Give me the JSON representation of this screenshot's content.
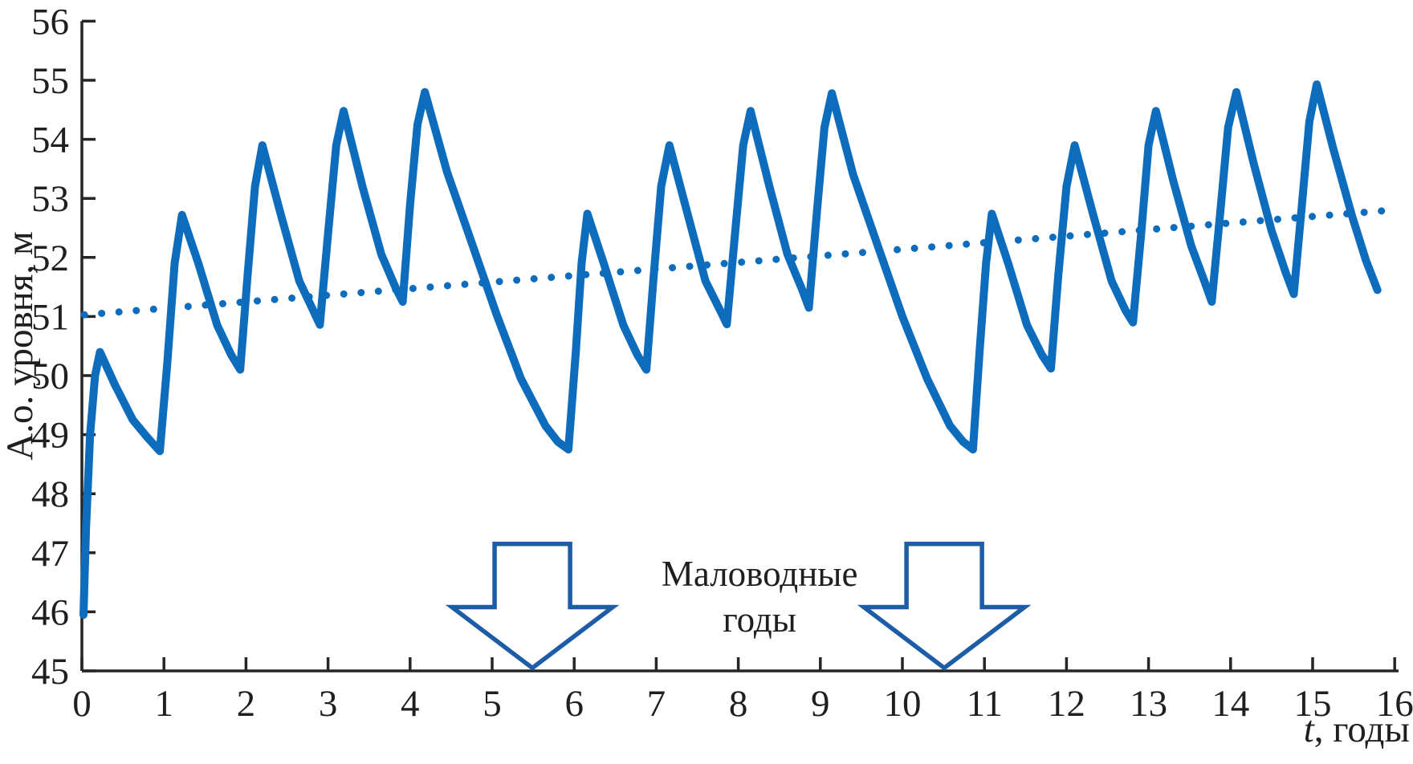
{
  "figure": {
    "background": "#ffffff",
    "series_color": "#0e6cbd",
    "trend_color": "#0e6cbd",
    "arrow_color": "#1d5ca7",
    "axis_color": "#262626",
    "text_color": "#1f1f1f"
  },
  "chart_data": {
    "type": "line",
    "title": "",
    "xlabel": "t, годы",
    "xlabel_var": "t",
    "xlabel_rest": ", годы",
    "ylabel": "А.о. уровня, м",
    "xlim": [
      0,
      16
    ],
    "ylim": [
      45,
      56
    ],
    "x_ticks": [
      0,
      1,
      2,
      3,
      4,
      5,
      6,
      7,
      8,
      9,
      10,
      11,
      12,
      13,
      14,
      15,
      16
    ],
    "y_ticks": [
      45,
      46,
      47,
      48,
      49,
      50,
      51,
      52,
      53,
      54,
      55,
      56
    ],
    "grid": false,
    "legend": "none",
    "series": [
      {
        "name": "level",
        "style": "solid",
        "points": [
          [
            0.02,
            45.95
          ],
          [
            0.05,
            47.4
          ],
          [
            0.1,
            49.0
          ],
          [
            0.16,
            50.0
          ],
          [
            0.22,
            50.4
          ],
          [
            0.4,
            49.85
          ],
          [
            0.62,
            49.25
          ],
          [
            0.8,
            48.95
          ],
          [
            0.95,
            48.72
          ],
          [
            1.04,
            50.2
          ],
          [
            1.13,
            51.9
          ],
          [
            1.22,
            52.72
          ],
          [
            1.42,
            51.9
          ],
          [
            1.65,
            50.85
          ],
          [
            1.82,
            50.35
          ],
          [
            1.93,
            50.1
          ],
          [
            2.02,
            51.7
          ],
          [
            2.11,
            53.2
          ],
          [
            2.2,
            53.9
          ],
          [
            2.42,
            52.75
          ],
          [
            2.65,
            51.6
          ],
          [
            2.82,
            51.1
          ],
          [
            2.9,
            50.86
          ],
          [
            3.0,
            52.4
          ],
          [
            3.1,
            53.9
          ],
          [
            3.19,
            54.48
          ],
          [
            3.42,
            53.2
          ],
          [
            3.65,
            52.05
          ],
          [
            3.82,
            51.5
          ],
          [
            3.91,
            51.25
          ],
          [
            4.0,
            52.9
          ],
          [
            4.09,
            54.25
          ],
          [
            4.18,
            54.8
          ],
          [
            4.45,
            53.45
          ],
          [
            4.75,
            52.25
          ],
          [
            5.05,
            51.05
          ],
          [
            5.35,
            49.95
          ],
          [
            5.65,
            49.15
          ],
          [
            5.8,
            48.88
          ],
          [
            5.93,
            48.75
          ],
          [
            6.02,
            50.4
          ],
          [
            6.09,
            51.9
          ],
          [
            6.16,
            52.74
          ],
          [
            6.36,
            51.9
          ],
          [
            6.6,
            50.85
          ],
          [
            6.77,
            50.35
          ],
          [
            6.88,
            50.1
          ],
          [
            6.97,
            51.7
          ],
          [
            7.06,
            53.2
          ],
          [
            7.16,
            53.9
          ],
          [
            7.38,
            52.75
          ],
          [
            7.6,
            51.6
          ],
          [
            7.78,
            51.1
          ],
          [
            7.86,
            50.87
          ],
          [
            7.96,
            52.4
          ],
          [
            8.06,
            53.9
          ],
          [
            8.15,
            54.48
          ],
          [
            8.38,
            53.2
          ],
          [
            8.6,
            52.05
          ],
          [
            8.78,
            51.45
          ],
          [
            8.86,
            51.15
          ],
          [
            8.96,
            52.8
          ],
          [
            9.05,
            54.2
          ],
          [
            9.14,
            54.78
          ],
          [
            9.4,
            53.4
          ],
          [
            9.7,
            52.2
          ],
          [
            10.0,
            51.0
          ],
          [
            10.3,
            49.95
          ],
          [
            10.58,
            49.15
          ],
          [
            10.74,
            48.88
          ],
          [
            10.86,
            48.75
          ],
          [
            10.94,
            50.4
          ],
          [
            11.02,
            51.9
          ],
          [
            11.09,
            52.74
          ],
          [
            11.29,
            51.9
          ],
          [
            11.52,
            50.85
          ],
          [
            11.7,
            50.35
          ],
          [
            11.81,
            50.12
          ],
          [
            11.9,
            51.7
          ],
          [
            12.0,
            53.2
          ],
          [
            12.1,
            53.9
          ],
          [
            12.32,
            52.75
          ],
          [
            12.55,
            51.6
          ],
          [
            12.72,
            51.1
          ],
          [
            12.81,
            50.9
          ],
          [
            12.91,
            52.4
          ],
          [
            13.0,
            53.9
          ],
          [
            13.09,
            54.48
          ],
          [
            13.3,
            53.3
          ],
          [
            13.52,
            52.2
          ],
          [
            13.68,
            51.6
          ],
          [
            13.77,
            51.25
          ],
          [
            13.87,
            52.7
          ],
          [
            13.97,
            54.2
          ],
          [
            14.07,
            54.8
          ],
          [
            14.28,
            53.6
          ],
          [
            14.5,
            52.45
          ],
          [
            14.67,
            51.75
          ],
          [
            14.77,
            51.38
          ],
          [
            14.87,
            52.9
          ],
          [
            14.96,
            54.3
          ],
          [
            15.05,
            54.93
          ],
          [
            15.25,
            53.85
          ],
          [
            15.48,
            52.7
          ],
          [
            15.65,
            51.95
          ],
          [
            15.79,
            51.45
          ]
        ]
      },
      {
        "name": "trend",
        "style": "dotted",
        "points": [
          [
            0.03,
            51.03
          ],
          [
            15.86,
            52.79
          ]
        ]
      }
    ],
    "annotations": {
      "label": {
        "text_lines": [
          "Маловодные",
          "годы"
        ],
        "t": 8.26
      },
      "arrows": [
        {
          "t": 5.49
        },
        {
          "t": 10.51
        }
      ],
      "arrow_shape": {
        "top_v": 47.15,
        "shoulder_v": 46.08,
        "tip_v": 45.05,
        "stem_halfwidth_t": 0.46,
        "head_halfwidth_t": 0.98
      }
    }
  }
}
